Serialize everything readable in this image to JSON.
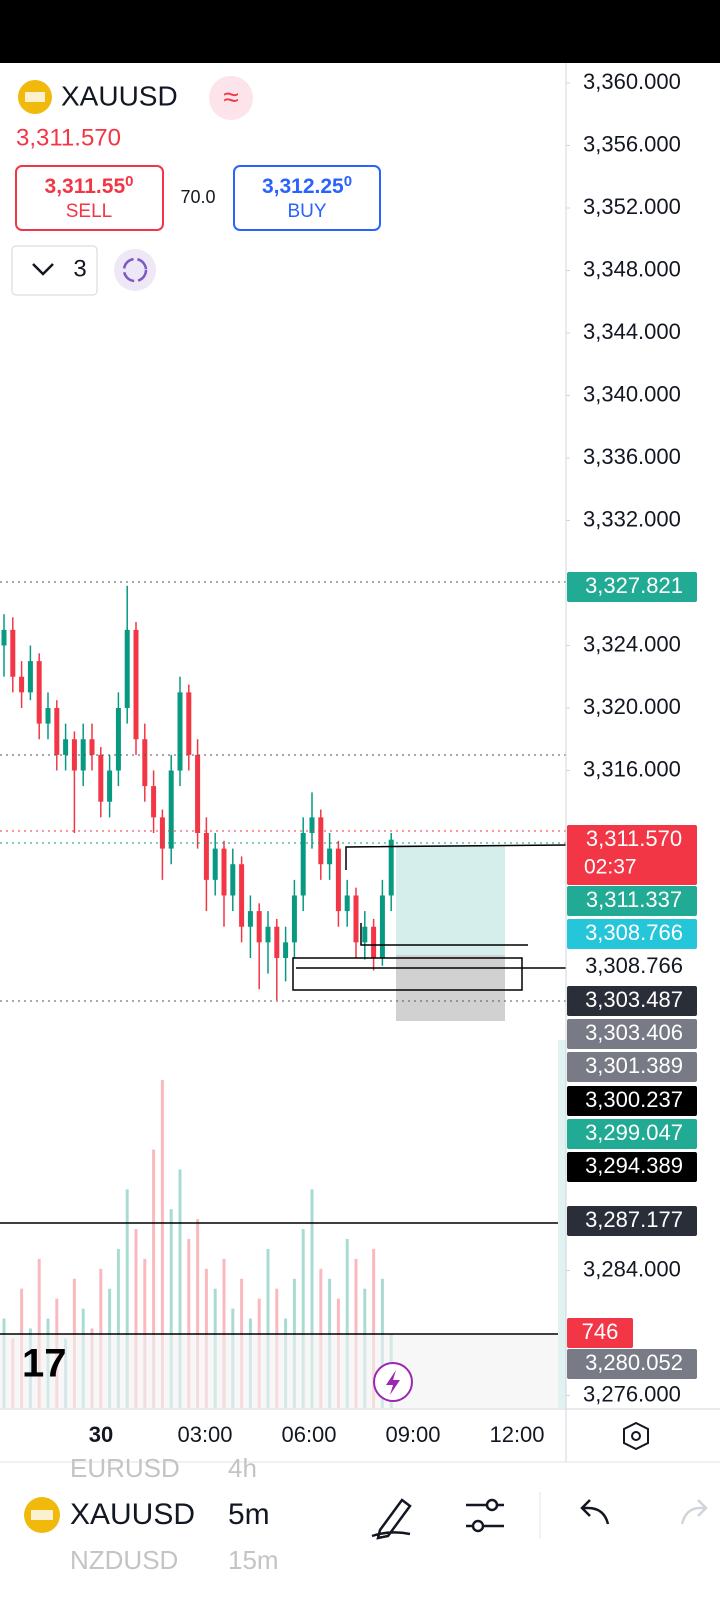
{
  "header": {
    "symbol": "XAUUSD",
    "price": "3,311.570",
    "sell": {
      "price": "3,311.55",
      "pip": "0",
      "label": "SELL"
    },
    "spread": "70.0",
    "buy": {
      "price": "3,312.25",
      "pip": "0",
      "label": "BUY"
    },
    "lots": "3"
  },
  "chart_data": {
    "type": "candlestick",
    "ylim": [
      3275.07,
      3361.28
    ],
    "yticks": [
      {
        "value": 3360,
        "label": "3,360.000"
      },
      {
        "value": 3356,
        "label": "3,356.000"
      },
      {
        "value": 3352,
        "label": "3,352.000"
      },
      {
        "value": 3348,
        "label": "3,348.000"
      },
      {
        "value": 3344,
        "label": "3,344.000"
      },
      {
        "value": 3340,
        "label": "3,340.000"
      },
      {
        "value": 3336,
        "label": "3,336.000"
      },
      {
        "value": 3332,
        "label": "3,332.000"
      },
      {
        "value": 3324,
        "label": "3,324.000"
      },
      {
        "value": 3320,
        "label": "3,320.000"
      },
      {
        "value": 3316,
        "label": "3,316.000"
      },
      {
        "value": 3284,
        "label": "3,284.000"
      },
      {
        "value": 3276,
        "label": "3,276.000"
      }
    ],
    "up_color": "#089981",
    "down_color": "#f23645",
    "candles": [
      [
        3324,
        3326,
        3322,
        3325
      ],
      [
        3325,
        3325.8,
        3321,
        3322
      ],
      [
        3322,
        3323,
        3320,
        3321
      ],
      [
        3321,
        3324,
        3320.5,
        3323
      ],
      [
        3323,
        3323.5,
        3318,
        3319
      ],
      [
        3319,
        3321,
        3318,
        3320
      ],
      [
        3320,
        3320.5,
        3316,
        3317
      ],
      [
        3317,
        3319,
        3316,
        3318
      ],
      [
        3318,
        3318.5,
        3312,
        3316
      ],
      [
        3316,
        3319,
        3315,
        3318
      ],
      [
        3318,
        3319,
        3316,
        3317
      ],
      [
        3317,
        3317.5,
        3313,
        3314
      ],
      [
        3314,
        3317,
        3313,
        3316
      ],
      [
        3316,
        3321,
        3315,
        3320
      ],
      [
        3320,
        3327.821,
        3319,
        3325
      ],
      [
        3325,
        3325.5,
        3317,
        3318
      ],
      [
        3318,
        3319,
        3314,
        3315
      ],
      [
        3315,
        3316,
        3312,
        3313
      ],
      [
        3313,
        3313.5,
        3309,
        3311
      ],
      [
        3311,
        3317,
        3310,
        3316
      ],
      [
        3316,
        3322,
        3315,
        3321
      ],
      [
        3321,
        3321.5,
        3316,
        3317
      ],
      [
        3317,
        3318,
        3311,
        3312
      ],
      [
        3312,
        3313,
        3307,
        3309
      ],
      [
        3309,
        3312,
        3308,
        3311
      ],
      [
        3311,
        3311.5,
        3306,
        3308
      ],
      [
        3308,
        3311,
        3307,
        3310
      ],
      [
        3310,
        3310.5,
        3305,
        3306
      ],
      [
        3306,
        3308,
        3304,
        3307
      ],
      [
        3307,
        3307.5,
        3302,
        3305
      ],
      [
        3305,
        3307,
        3303,
        3306
      ],
      [
        3306,
        3306.5,
        3301.3,
        3304
      ],
      [
        3304,
        3306,
        3302.5,
        3305
      ],
      [
        3305,
        3309,
        3304,
        3308
      ],
      [
        3308,
        3313,
        3307,
        3312
      ],
      [
        3312,
        3314.6,
        3311,
        3313
      ],
      [
        3313,
        3313.5,
        3309,
        3310
      ],
      [
        3310,
        3312,
        3309,
        3311
      ],
      [
        3311,
        3311.5,
        3306,
        3307
      ],
      [
        3307,
        3309,
        3306,
        3308
      ],
      [
        3308,
        3308.5,
        3304,
        3305
      ],
      [
        3305,
        3307,
        3303.9,
        3306
      ],
      [
        3306,
        3306.5,
        3303.2,
        3304
      ],
      [
        3304,
        3309,
        3303.5,
        3308
      ],
      [
        3308,
        3312,
        3307,
        3311.57
      ]
    ],
    "volumes": [
      900,
      700,
      1200,
      800,
      1500,
      900,
      1100,
      700,
      1300,
      1000,
      800,
      1400,
      1200,
      1600,
      2200,
      1800,
      1500,
      2600,
      3300,
      2000,
      2400,
      1700,
      1900,
      1400,
      1200,
      1500,
      1000,
      1300,
      900,
      1100,
      1600,
      1200,
      900,
      1300,
      1800,
      2200,
      1400,
      1300,
      1100,
      1700,
      1500,
      1200,
      1600,
      1300,
      746
    ],
    "volume_ylim": [
      0,
      3400
    ],
    "time_labels": [
      "30",
      "03:00",
      "06:00",
      "09:00",
      "12:00"
    ],
    "price_labels": [
      {
        "value": 3327.821,
        "label": "3,327.821",
        "color": "#22ab94"
      },
      {
        "value": 3311.57,
        "label": "3,311.570",
        "color": "#f23645",
        "countdown": "02:37"
      },
      {
        "value": 3311.337,
        "label": "3,311.337",
        "color": "#22ab94"
      },
      {
        "value": 3308.766,
        "label": "3,308.766",
        "color": "#26c6da"
      },
      {
        "value": 3308.766,
        "label": "3,308.766",
        "color": "#ffffff"
      },
      {
        "value": 3303.487,
        "label": "3,303.487",
        "color": "#2a2e39"
      },
      {
        "value": 3303.406,
        "label": "3,303.406",
        "color": "#787b86"
      },
      {
        "value": 3301.389,
        "label": "3,301.389",
        "color": "#787b86"
      },
      {
        "value": 3300.237,
        "label": "3,300.237",
        "color": "#000000"
      },
      {
        "value": 3299.047,
        "label": "3,299.047",
        "color": "#22ab94"
      },
      {
        "value": 3294.389,
        "label": "3,294.389",
        "color": "#000000"
      },
      {
        "value": 3287.177,
        "label": "3,287.177",
        "color": "#2a2e39"
      },
      {
        "value": 746,
        "color": "#f23645"
      },
      {
        "value": 3280.052,
        "label": "3,280.052",
        "color": "#787b86"
      }
    ]
  },
  "bottom": {
    "symbol": "XAUUSD",
    "interval": "5m",
    "prev_symbol": "EURUSD",
    "prev_interval": "4h",
    "next_symbol": "NZDUSD",
    "next_interval": "15m"
  }
}
